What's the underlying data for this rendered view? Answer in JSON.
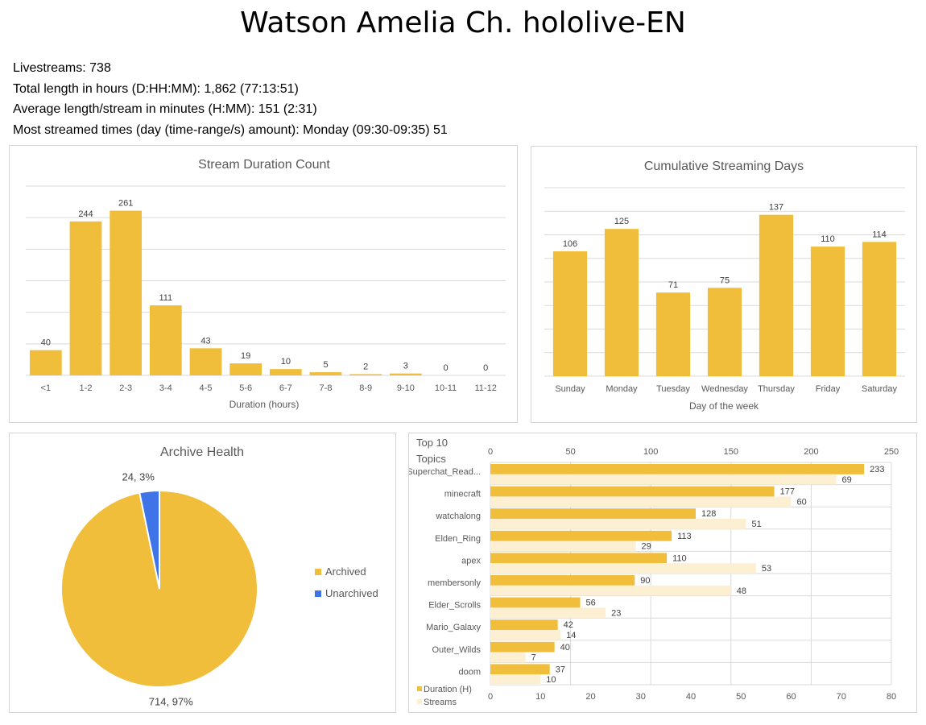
{
  "page_title": "Watson Amelia Ch. hololive-EN",
  "stats": {
    "livestreams": "Livestreams: 738",
    "total_length": "Total length in hours (D:HH:MM): 1,862 (77:13:51)",
    "average_length": "Average length/stream in minutes (H:MM): 151 (2:31)",
    "most_streamed": "Most streamed times (day (time-range/s) amount): Monday (09:30-09:35) 51"
  },
  "colors": {
    "bar": "#f0be3a",
    "bar_light": "#fcefd2",
    "unarchived": "#3f74e8",
    "grid": "#d9d9d9",
    "text": "#595959"
  },
  "chart_data": [
    {
      "type": "bar",
      "title": "Stream Duration Count",
      "xlabel": "Duration (hours)",
      "ylabel": "",
      "categories": [
        "<1",
        "1-2",
        "2-3",
        "3-4",
        "4-5",
        "5-6",
        "6-7",
        "7-8",
        "8-9",
        "9-10",
        "10-11",
        "11-12"
      ],
      "values": [
        40,
        244,
        261,
        111,
        43,
        19,
        10,
        5,
        2,
        3,
        0,
        0
      ],
      "ylim": [
        0,
        300
      ],
      "grid": true,
      "data_labels": true
    },
    {
      "type": "bar",
      "title": "Cumulative Streaming Days",
      "xlabel": "Day of the week",
      "ylabel": "",
      "categories": [
        "Sunday",
        "Monday",
        "Tuesday",
        "Wednesday",
        "Thursday",
        "Friday",
        "Saturday"
      ],
      "values": [
        106,
        125,
        71,
        75,
        137,
        110,
        114
      ],
      "ylim": [
        0,
        160
      ],
      "grid": true,
      "data_labels": true
    },
    {
      "type": "pie",
      "title": "Archive Health",
      "categories": [
        "Archived",
        "Unarchived"
      ],
      "values": [
        714,
        24
      ],
      "labels": [
        "714, 97%",
        "24, 3%"
      ],
      "legend": "right"
    },
    {
      "type": "bar",
      "orientation": "horizontal",
      "title": "Top 10 Topics",
      "categories": [
        "Superchat_Read...",
        "minecraft",
        "watchalong",
        "Elden_Ring",
        "apex",
        "membersonly",
        "Elder_Scrolls",
        "Mario_Galaxy",
        "Outer_Wilds",
        "doom"
      ],
      "series": [
        {
          "name": "Duration (H)",
          "axis": "top",
          "values": [
            233,
            177,
            128,
            113,
            110,
            90,
            56,
            42,
            40,
            37
          ]
        },
        {
          "name": "Streams",
          "axis": "bottom",
          "values": [
            69,
            60,
            51,
            29,
            53,
            48,
            23,
            14,
            7,
            10
          ]
        }
      ],
      "top_axis": {
        "min": 0,
        "max": 250,
        "ticks": [
          "0",
          "50",
          "100",
          "150",
          "200",
          "250"
        ]
      },
      "bottom_axis": {
        "min": 0,
        "max": 80,
        "ticks": [
          "0",
          "10",
          "20",
          "30",
          "40",
          "50",
          "60",
          "70",
          "80"
        ]
      },
      "legend": "bottom-left",
      "grid": true,
      "data_labels": true
    }
  ]
}
